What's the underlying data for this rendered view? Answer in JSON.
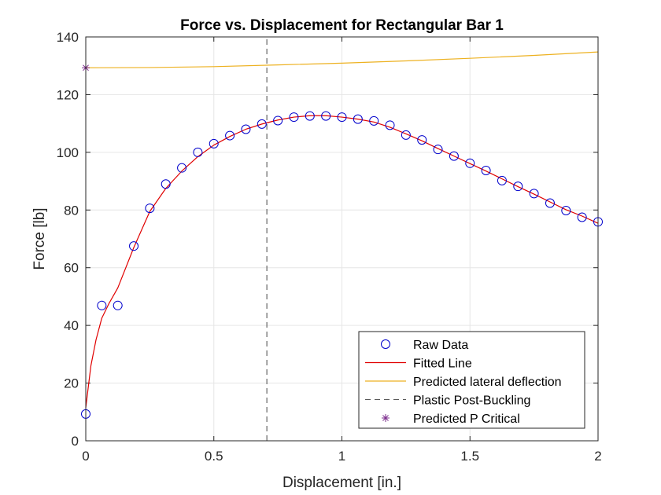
{
  "chart_data": {
    "type": "scatter",
    "title": "Force vs. Displacement for Rectangular Bar 1",
    "xlabel": "Displacement [in.]",
    "ylabel": "Force [lb]",
    "xlim": [
      0,
      2
    ],
    "ylim": [
      0,
      140
    ],
    "xticks": [
      0,
      0.5,
      1,
      1.5,
      2
    ],
    "yticks": [
      0,
      20,
      40,
      60,
      80,
      100,
      120,
      140
    ],
    "xtick_labels": [
      "0",
      "0.5",
      "1",
      "1.5",
      "2"
    ],
    "ytick_labels": [
      "0",
      "20",
      "40",
      "60",
      "80",
      "100",
      "120",
      "140"
    ],
    "grid": true,
    "legend_placement": "bottom-right",
    "series": [
      {
        "name": "Raw Data",
        "kind": "scatter",
        "marker": "circle",
        "color": "#0000cc",
        "x": [
          0,
          0.0625,
          0.125,
          0.1875,
          0.25,
          0.3125,
          0.375,
          0.4375,
          0.5,
          0.5625,
          0.625,
          0.6875,
          0.75,
          0.8125,
          0.875,
          0.9375,
          1.0,
          1.0625,
          1.125,
          1.1875,
          1.25,
          1.3125,
          1.375,
          1.4375,
          1.5,
          1.5625,
          1.625,
          1.6875,
          1.75,
          1.8125,
          1.875,
          1.9375,
          2.0
        ],
        "y": [
          9.3,
          46.9,
          46.9,
          67.5,
          80.6,
          89.0,
          94.6,
          100.0,
          103.0,
          105.8,
          108.0,
          109.8,
          111.0,
          112.2,
          112.6,
          112.6,
          112.2,
          111.5,
          110.9,
          109.4,
          106.0,
          104.3,
          101.0,
          98.7,
          96.2,
          93.7,
          90.2,
          88.2,
          85.7,
          82.4,
          79.8,
          77.5,
          75.9
        ]
      },
      {
        "name": "Fitted Line",
        "kind": "line",
        "color": "#e00000",
        "x": [
          0,
          0.02,
          0.04,
          0.0625,
          0.09,
          0.125,
          0.1875,
          0.25,
          0.3125,
          0.375,
          0.4375,
          0.5,
          0.5625,
          0.625,
          0.6875,
          0.75,
          0.8125,
          0.875,
          0.9375,
          1.0,
          1.0625,
          1.125,
          1.1875,
          1.25,
          1.3125,
          1.375,
          1.4375,
          1.5,
          1.5625,
          1.625,
          1.6875,
          1.75,
          1.8125,
          1.875,
          1.9375,
          2.0
        ],
        "y": [
          11.5,
          26.0,
          35.0,
          42.5,
          47.5,
          53.0,
          67.0,
          79.5,
          87.5,
          93.5,
          98.5,
          102.5,
          105.5,
          108.0,
          109.8,
          111.2,
          112.2,
          112.7,
          112.7,
          112.2,
          111.5,
          110.5,
          108.7,
          106.4,
          104.0,
          101.3,
          98.7,
          96.1,
          93.5,
          90.8,
          88.1,
          85.5,
          82.8,
          80.1,
          77.9,
          75.4
        ]
      },
      {
        "name": "Predicted lateral deflection",
        "kind": "line",
        "color": "#edb120",
        "x": [
          0,
          0.25,
          0.5,
          0.75,
          1.0,
          1.25,
          1.5,
          1.75,
          2.0
        ],
        "y": [
          129.3,
          129.4,
          129.7,
          130.3,
          130.9,
          131.7,
          132.6,
          133.6,
          134.8
        ]
      },
      {
        "name": "Plastic Post-Buckling",
        "kind": "vline",
        "color": "#595959",
        "x": [
          0.707,
          0.707
        ],
        "y": [
          0,
          140
        ]
      },
      {
        "name": "Predicted P Critical",
        "kind": "scatter",
        "marker": "asterisk",
        "color": "#7e2f8e",
        "x": [
          0
        ],
        "y": [
          129.3
        ]
      }
    ]
  }
}
